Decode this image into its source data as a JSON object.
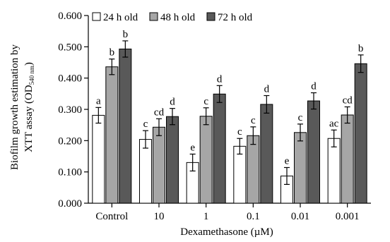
{
  "chart_data": {
    "type": "bar",
    "xlabel": "Dexamethasone (µM)",
    "ylabel_line1": "Biofilm growth estimation by",
    "ylabel_line2_main": "XTT assay (OD",
    "ylabel_line2_sub": "540 nm",
    "ylabel_line2_end": ")",
    "ylim": [
      0,
      0.6
    ],
    "yticks": [
      "0.000",
      "0.100",
      "0.200",
      "0.300",
      "0.400",
      "0.500",
      "0.600"
    ],
    "yticks_values": [
      0,
      0.1,
      0.2,
      0.3,
      0.4,
      0.5,
      0.6
    ],
    "categories": [
      "Control",
      "10",
      "1",
      "0.1",
      "0.01",
      "0.001"
    ],
    "legend_position": "top-left",
    "series": [
      {
        "name": "24 h old",
        "color": "#ffffff",
        "values": [
          0.281,
          0.204,
          0.13,
          0.182,
          0.087,
          0.207
        ],
        "errors": [
          0.025,
          0.028,
          0.027,
          0.025,
          0.027,
          0.027
        ],
        "labels": [
          "a",
          "c",
          "e",
          "c",
          "e",
          "ac"
        ]
      },
      {
        "name": "48 h old",
        "color": "#a6a6a6",
        "values": [
          0.436,
          0.243,
          0.278,
          0.216,
          0.226,
          0.282
        ],
        "errors": [
          0.025,
          0.027,
          0.027,
          0.028,
          0.027,
          0.026
        ],
        "labels": [
          "b",
          "cd",
          "c",
          "c",
          "c",
          "cd"
        ]
      },
      {
        "name": "72 h old",
        "color": "#595959",
        "values": [
          0.493,
          0.277,
          0.349,
          0.316,
          0.327,
          0.446
        ],
        "errors": [
          0.026,
          0.026,
          0.027,
          0.028,
          0.026,
          0.028
        ],
        "labels": [
          "b",
          "d",
          "d",
          "d",
          "d",
          "b"
        ]
      }
    ]
  }
}
